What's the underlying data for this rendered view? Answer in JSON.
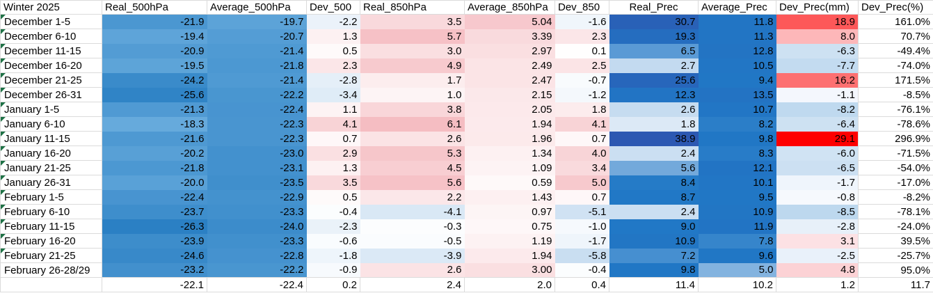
{
  "table": {
    "corner_label": "Winter 2025",
    "headers": [
      "Real_500hPa",
      "Average_500hPa",
      "Dev_500",
      "Real_850hPa",
      "Average_850hPa",
      "Dev_850",
      "Real_Prec",
      "Average_Prec",
      "Dev_Prec(mm)",
      "Dev_Prec(%)"
    ],
    "rows": [
      {
        "label": "December 1-5",
        "flag": true,
        "cells": [
          "-21.9",
          "-19.7",
          "-2.2",
          "3.5",
          "5.04",
          "-1.6",
          "30.7",
          "11.8",
          "18.9",
          "161.0%"
        ]
      },
      {
        "label": "December 6-10",
        "flag": true,
        "cells": [
          "-19.4",
          "-20.7",
          "1.3",
          "5.7",
          "3.39",
          "2.3",
          "19.3",
          "11.3",
          "8.0",
          "70.7%"
        ]
      },
      {
        "label": "December 11-15",
        "flag": true,
        "cells": [
          "-20.9",
          "-21.4",
          "0.5",
          "3.0",
          "2.97",
          "0.1",
          "6.5",
          "12.8",
          "-6.3",
          "-49.4%"
        ]
      },
      {
        "label": "December 16-20",
        "flag": true,
        "cells": [
          "-19.5",
          "-21.8",
          "2.3",
          "4.9",
          "2.49",
          "2.5",
          "2.7",
          "10.5",
          "-7.7",
          "-74.0%"
        ]
      },
      {
        "label": "December 21-25",
        "flag": true,
        "cells": [
          "-24.2",
          "-21.4",
          "-2.8",
          "1.7",
          "2.47",
          "-0.7",
          "25.6",
          "9.4",
          "16.2",
          "171.5%"
        ]
      },
      {
        "label": "December 26-31",
        "flag": true,
        "cells": [
          "-25.6",
          "-22.2",
          "-3.4",
          "1.0",
          "2.15",
          "-1.2",
          "12.3",
          "13.5",
          "-1.1",
          "-8.5%"
        ]
      },
      {
        "label": "January 1-5",
        "flag": true,
        "cells": [
          "-21.3",
          "-22.4",
          "1.1",
          "3.8",
          "2.05",
          "1.8",
          "2.6",
          "10.7",
          "-8.2",
          "-76.1%"
        ]
      },
      {
        "label": "January 6-10",
        "flag": true,
        "cells": [
          "-18.3",
          "-22.3",
          "4.1",
          "6.1",
          "1.94",
          "4.1",
          "1.8",
          "8.2",
          "-6.4",
          "-78.6%"
        ]
      },
      {
        "label": "January 11-15",
        "flag": true,
        "cells": [
          "-21.6",
          "-22.3",
          "0.7",
          "2.6",
          "1.96",
          "0.7",
          "38.9",
          "9.8",
          "29.1",
          "296.9%"
        ]
      },
      {
        "label": "January 16-20",
        "flag": true,
        "cells": [
          "-20.2",
          "-23.0",
          "2.9",
          "5.3",
          "1.34",
          "4.0",
          "2.4",
          "8.3",
          "-6.0",
          "-71.5%"
        ]
      },
      {
        "label": "January 21-25",
        "flag": true,
        "cells": [
          "-21.8",
          "-23.1",
          "1.3",
          "4.5",
          "1.09",
          "3.4",
          "5.6",
          "12.1",
          "-6.5",
          "-54.0%"
        ]
      },
      {
        "label": "January 26-31",
        "flag": true,
        "cells": [
          "-20.0",
          "-23.5",
          "3.5",
          "5.6",
          "0.59",
          "5.0",
          "8.4",
          "10.1",
          "-1.7",
          "-17.0%"
        ]
      },
      {
        "label": "February 1-5",
        "flag": true,
        "cells": [
          "-22.4",
          "-22.9",
          "0.5",
          "2.2",
          "1.43",
          "0.7",
          "8.7",
          "9.5",
          "-0.8",
          "-8.2%"
        ]
      },
      {
        "label": "February 6-10",
        "flag": true,
        "cells": [
          "-23.7",
          "-23.3",
          "-0.4",
          "-4.1",
          "0.97",
          "-5.1",
          "2.4",
          "10.9",
          "-8.5",
          "-78.1%"
        ]
      },
      {
        "label": "February 11-15",
        "flag": true,
        "cells": [
          "-26.3",
          "-24.0",
          "-2.3",
          "-0.3",
          "0.75",
          "-1.0",
          "9.0",
          "11.9",
          "-2.8",
          "-24.0%"
        ]
      },
      {
        "label": "February 16-20",
        "flag": true,
        "cells": [
          "-23.9",
          "-23.3",
          "-0.6",
          "-0.5",
          "1.19",
          "-1.7",
          "10.9",
          "7.8",
          "3.1",
          "39.5%"
        ]
      },
      {
        "label": "February 21-25",
        "flag": true,
        "cells": [
          "-24.6",
          "-22.8",
          "-1.8",
          "-3.9",
          "1.94",
          "-5.8",
          "7.2",
          "9.6",
          "-2.5",
          "-25.7%"
        ]
      },
      {
        "label": "February 26-28/29",
        "flag": false,
        "cells": [
          "-23.2",
          "-22.2",
          "-0.9",
          "2.6",
          "3.00",
          "-0.4",
          "9.8",
          "5.0",
          "4.8",
          "95.0%"
        ]
      }
    ],
    "totals": {
      "label": "",
      "cells": [
        "-22.1",
        "-22.4",
        "0.2",
        "2.4",
        "2.0",
        "0.4",
        "11.4",
        "10.2",
        "1.2",
        "11.7"
      ]
    }
  },
  "icons": {
    "flag_icon": "cell-flag-triangle"
  },
  "colors": {
    "flag_green": "#1E7145",
    "gridline": "#DBDBDB",
    "header_bg": "#FFFFFF",
    "text": "#000000",
    "pure_red_max": "#FE0000",
    "scales": {
      "temp500": [
        [
          -26.3,
          "#2B80C4"
        ],
        [
          -18.3,
          "#66AADC"
        ]
      ],
      "diverging": [
        [
          -5.8,
          "#C9DEF1"
        ],
        [
          0,
          "#FFFFFF"
        ],
        [
          6.1,
          "#F5BDC2"
        ]
      ],
      "precip": [
        [
          1.8,
          "#DCE9F6"
        ],
        [
          8.55,
          "#2178C6"
        ],
        [
          38.9,
          "#2C58B2"
        ]
      ],
      "dev_precip": [
        [
          -8.5,
          "#BDD8EE"
        ],
        [
          0,
          "#FCFCFF"
        ],
        [
          29.1,
          "#FE0000"
        ]
      ]
    },
    "column_scales": [
      "temp500",
      "temp500",
      "diverging",
      "diverging",
      "diverging",
      "diverging",
      "precip",
      "precip",
      "dev_precip",
      null
    ]
  }
}
